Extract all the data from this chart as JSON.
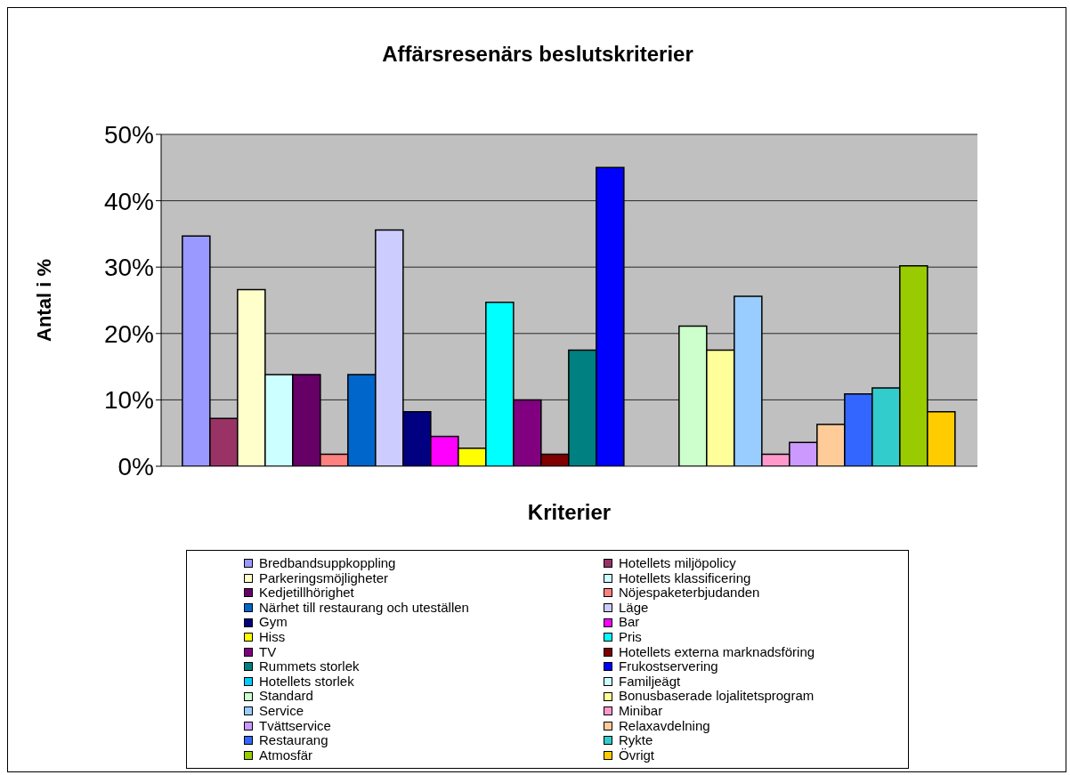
{
  "chart_data": {
    "type": "bar",
    "title": "Affärsresenärs beslutskriterier",
    "xlabel": "Kriterier",
    "ylabel": "Antal i %",
    "categories": [
      null
    ],
    "ylim": [
      0,
      50
    ],
    "yticks": [
      {
        "value": 0,
        "label": "0%"
      },
      {
        "value": 10,
        "label": "10%"
      },
      {
        "value": 20,
        "label": "20%"
      },
      {
        "value": 30,
        "label": "30%"
      },
      {
        "value": 40,
        "label": "40%"
      },
      {
        "value": 50,
        "label": "50%"
      }
    ],
    "grid": "y",
    "legend": "bottom",
    "series": [
      {
        "name": "Bredbandsuppkoppling",
        "color": "#9999ff",
        "values": [
          34.7
        ]
      },
      {
        "name": "Hotellets miljöpolicy",
        "color": "#993366",
        "values": [
          7.2
        ]
      },
      {
        "name": "Parkeringsmöjligheter",
        "color": "#ffffcc",
        "values": [
          26.6
        ]
      },
      {
        "name": "Hotellets klassificering",
        "color": "#ccffff",
        "values": [
          13.8
        ]
      },
      {
        "name": "Kedjetillhörighet",
        "color": "#660066",
        "values": [
          13.8
        ]
      },
      {
        "name": "Nöjespaketerbjudanden",
        "color": "#ff8080",
        "values": [
          1.8
        ]
      },
      {
        "name": "Närhet till restaurang och uteställen",
        "color": "#0066cc",
        "values": [
          13.8
        ]
      },
      {
        "name": "Läge",
        "color": "#ccccff",
        "values": [
          35.6
        ]
      },
      {
        "name": "Gym",
        "color": "#000080",
        "values": [
          8.2
        ]
      },
      {
        "name": "Bar",
        "color": "#ff00ff",
        "values": [
          4.5
        ]
      },
      {
        "name": "Hiss",
        "color": "#ffff00",
        "values": [
          2.7
        ]
      },
      {
        "name": "Pris",
        "color": "#00ffff",
        "values": [
          24.7
        ]
      },
      {
        "name": "TV",
        "color": "#800080",
        "values": [
          10.0
        ]
      },
      {
        "name": "Hotellets externa marknadsföring",
        "color": "#800000",
        "values": [
          1.8
        ]
      },
      {
        "name": "Rummets storlek",
        "color": "#008080",
        "values": [
          17.5
        ]
      },
      {
        "name": "Frukostservering",
        "color": "#0000ff",
        "values": [
          45.0
        ]
      },
      {
        "name": "Hotellets storlek",
        "color": "#00ccff",
        "values": [
          0
        ]
      },
      {
        "name": "Familjeägt",
        "color": "#ccffff",
        "values": [
          0
        ]
      },
      {
        "name": "Standard",
        "color": "#ccffcc",
        "values": [
          21.1
        ]
      },
      {
        "name": "Bonusbaserade lojalitetsprogram",
        "color": "#ffff99",
        "values": [
          17.5
        ]
      },
      {
        "name": "Service",
        "color": "#99ccff",
        "values": [
          25.6
        ]
      },
      {
        "name": "Minibar",
        "color": "#ff99cc",
        "values": [
          1.8
        ]
      },
      {
        "name": "Tvättservice",
        "color": "#cc99ff",
        "values": [
          3.6
        ]
      },
      {
        "name": "Relaxavdelning",
        "color": "#ffcc99",
        "values": [
          6.3
        ]
      },
      {
        "name": "Restaurang",
        "color": "#3366ff",
        "values": [
          10.9
        ]
      },
      {
        "name": "Rykte",
        "color": "#33cccc",
        "values": [
          11.8
        ]
      },
      {
        "name": "Atmosfär",
        "color": "#99cc00",
        "values": [
          30.2
        ]
      },
      {
        "name": "Övrigt",
        "color": "#ffcc00",
        "values": [
          8.2
        ]
      }
    ]
  }
}
